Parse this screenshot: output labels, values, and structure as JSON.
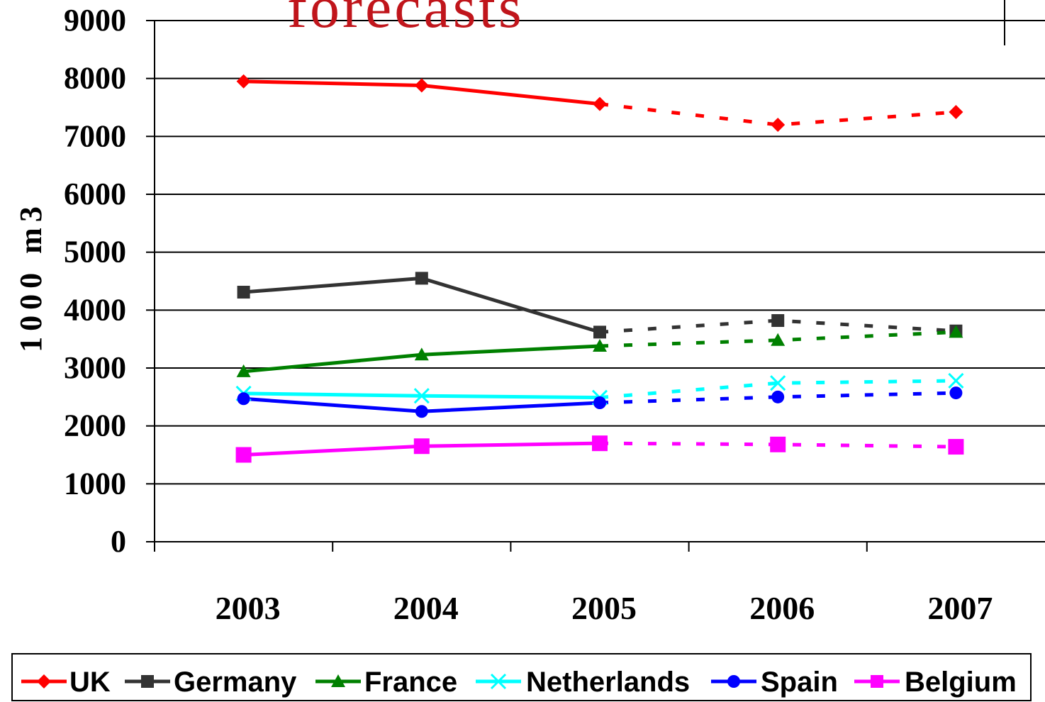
{
  "chart_data": {
    "type": "line",
    "title": "forecasts",
    "ylabel": "1000 m3",
    "xlabel": "",
    "categories": [
      "2003",
      "2004",
      "2005",
      "2006",
      "2007"
    ],
    "ylim": [
      0,
      9000
    ],
    "yticks": [
      "0",
      "1000",
      "2000",
      "3000",
      "4000",
      "5000",
      "6000",
      "7000",
      "8000",
      "9000"
    ],
    "grid": "horizontal",
    "legend": "bottom",
    "forecast_from": "2005",
    "series": [
      {
        "name": "UK",
        "color": "#ff0000",
        "marker": "diamond",
        "values": [
          7950,
          7880,
          7560,
          7200,
          7420
        ]
      },
      {
        "name": "Germany",
        "color": "#333333",
        "marker": "square",
        "values": [
          4310,
          4550,
          3620,
          3820,
          3640
        ]
      },
      {
        "name": "France",
        "color": "#008000",
        "marker": "triangle",
        "values": [
          2940,
          3230,
          3380,
          3480,
          3620
        ]
      },
      {
        "name": "Netherlands",
        "color": "#00ffff",
        "marker": "x",
        "values": [
          2560,
          2520,
          2490,
          2740,
          2780
        ]
      },
      {
        "name": "Spain",
        "color": "#0000ff",
        "marker": "circle",
        "values": [
          2470,
          2250,
          2400,
          2500,
          2570
        ]
      },
      {
        "name": "Belgium",
        "color": "#ff00ff",
        "marker": "square",
        "values": [
          1500,
          1650,
          1700,
          1680,
          1640
        ]
      }
    ]
  }
}
